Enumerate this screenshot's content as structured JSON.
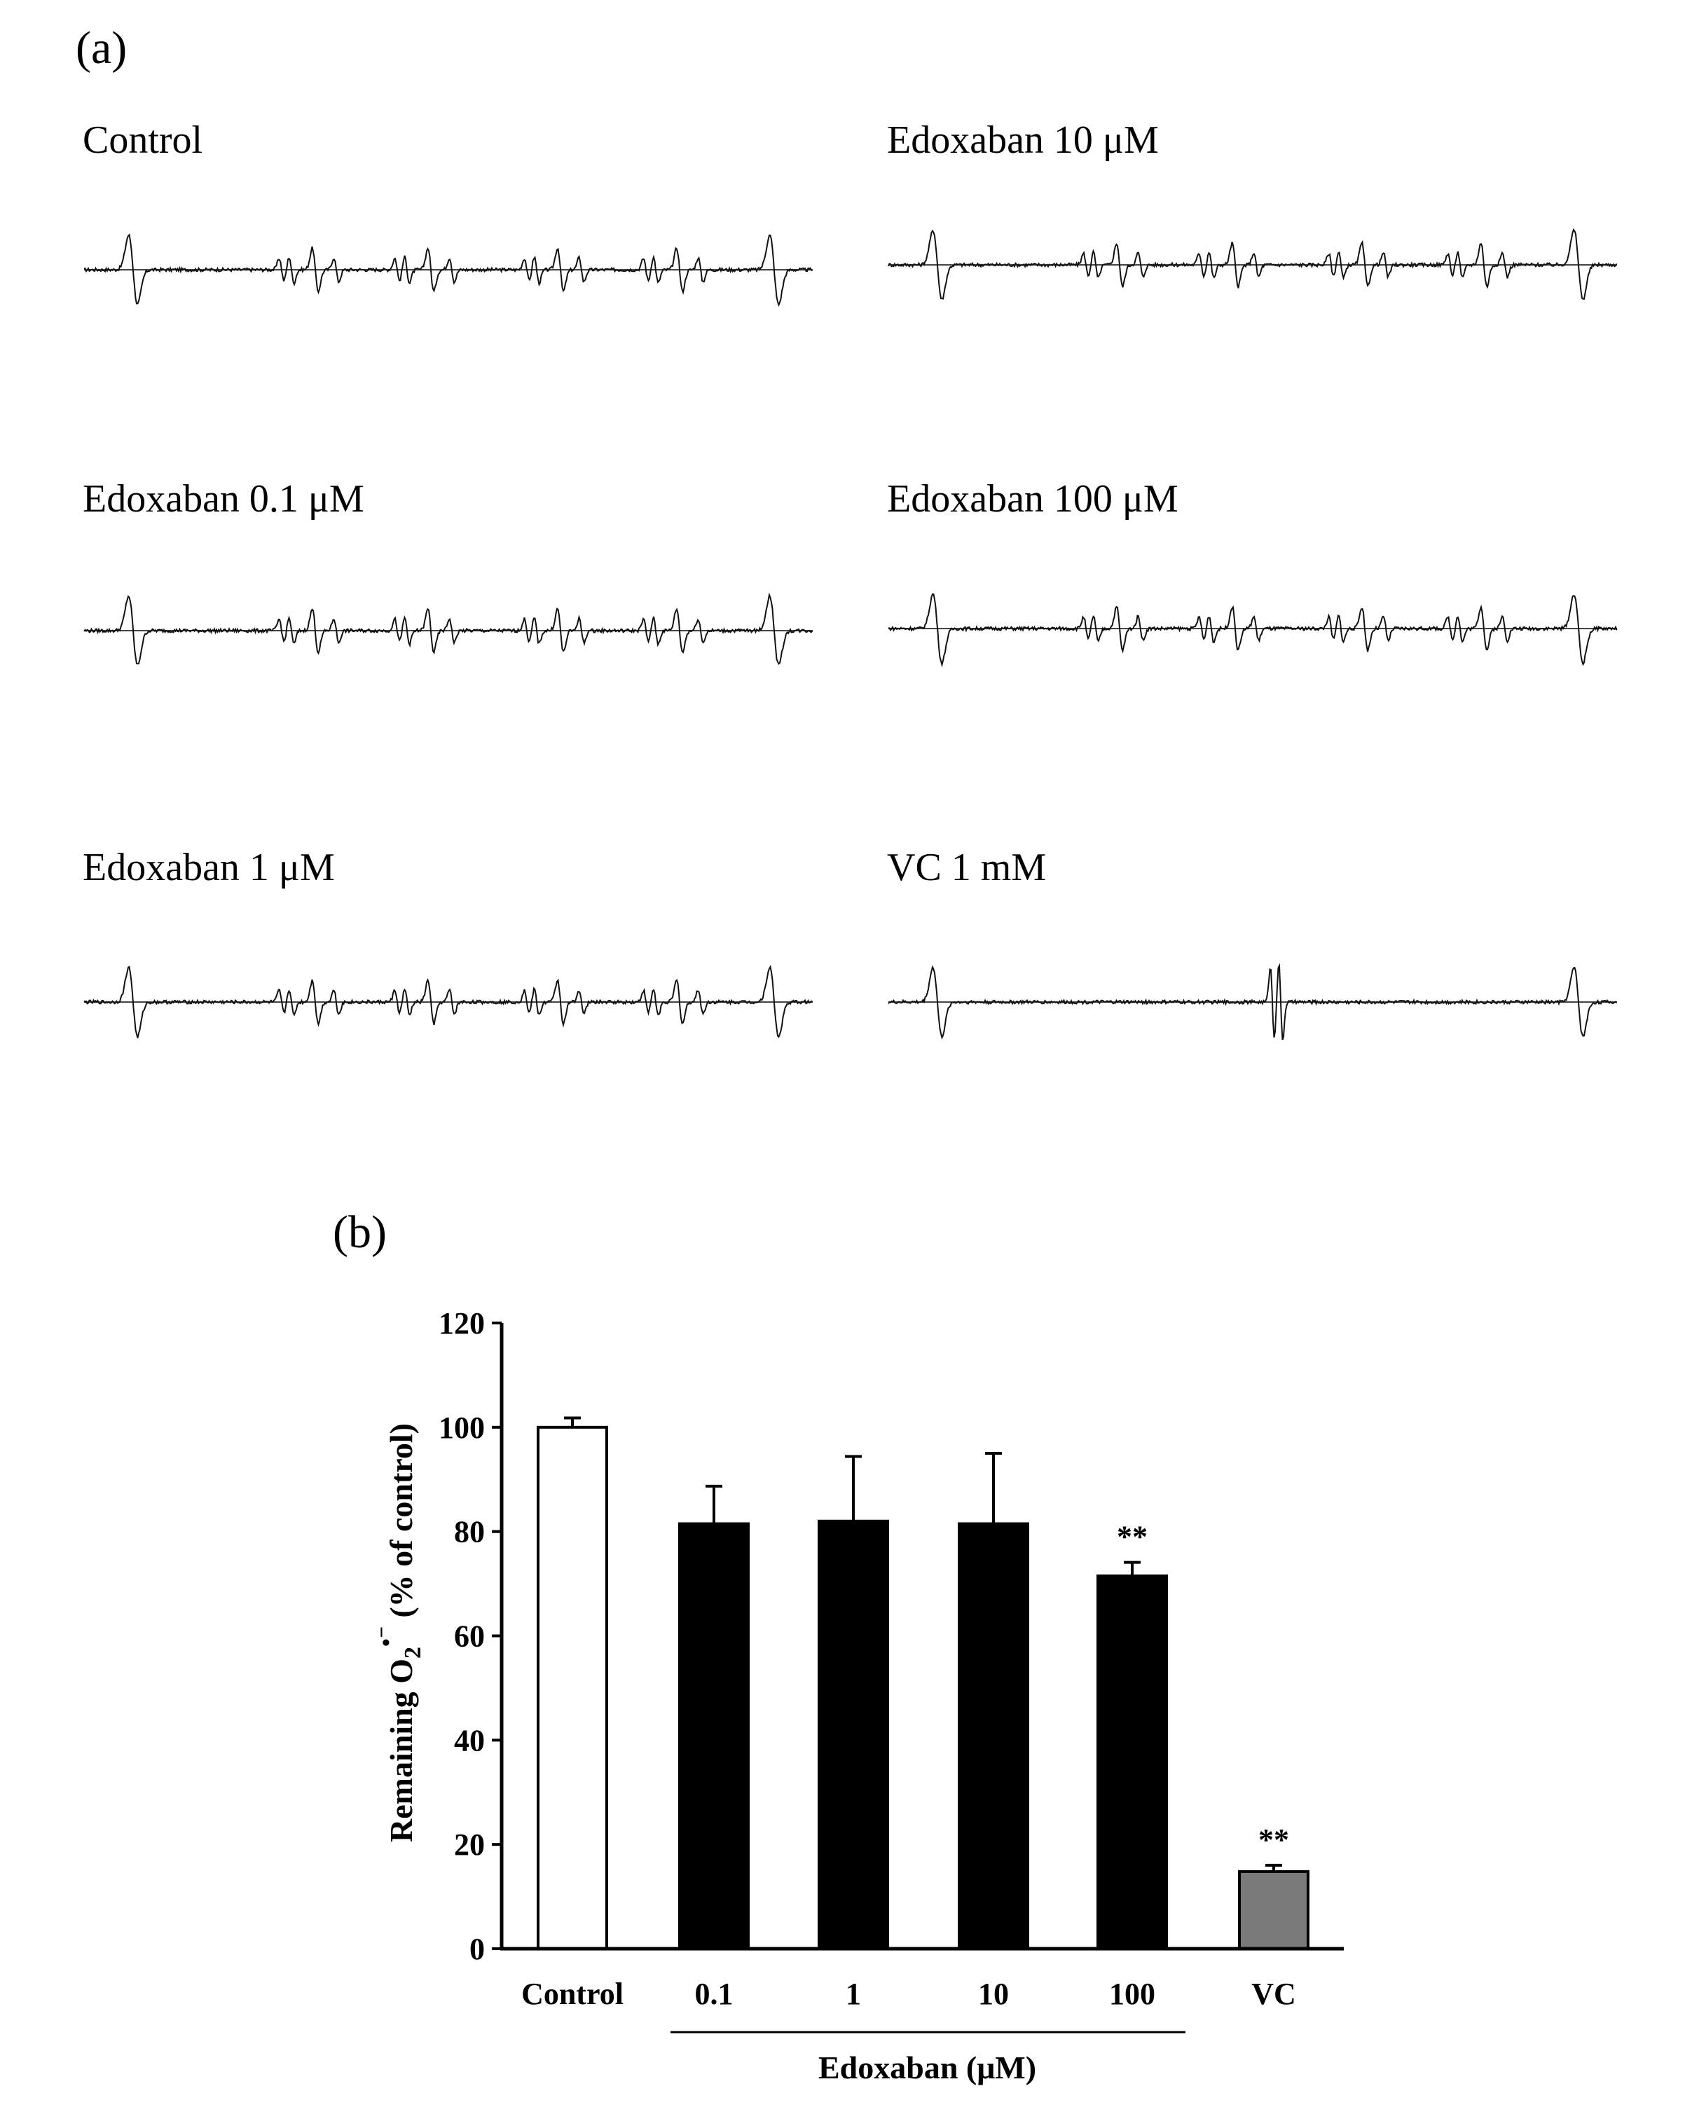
{
  "panel_a": {
    "label": "(a)",
    "spectra": [
      {
        "title": "Control",
        "variant": "control"
      },
      {
        "title": "Edoxaban  10 μM",
        "variant": "control"
      },
      {
        "title": "Edoxaban  0.1 μM",
        "variant": "control"
      },
      {
        "title": "Edoxaban  100 μM",
        "variant": "control"
      },
      {
        "title": "Edoxaban  1 μM",
        "variant": "control"
      },
      {
        "title": "VC  1 mM",
        "variant": "vc"
      }
    ]
  },
  "panel_b": {
    "label": "(b)"
  },
  "chart_data": {
    "type": "bar",
    "categories": [
      "Control",
      "0.1",
      "1",
      "10",
      "100",
      "VC"
    ],
    "values": [
      100,
      81.5,
      82,
      81.5,
      71.5,
      14.8
    ],
    "errors": [
      1.8,
      7.2,
      12.4,
      13.5,
      2.6,
      1.2
    ],
    "bar_colors": [
      "#ffffff",
      "#000000",
      "#000000",
      "#000000",
      "#000000",
      "#7a7a7a"
    ],
    "significance": [
      "",
      "",
      "",
      "",
      "**",
      "**"
    ],
    "ylabel": "Remaining O₂•⁻ (% of control)",
    "ylabel_parts": {
      "pre": "Remaining O",
      "sub": "2",
      "sup": "•⁻",
      "post": " (% of control)"
    },
    "ylim": [
      0,
      120
    ],
    "yticks": [
      0,
      20,
      40,
      60,
      80,
      100,
      120
    ],
    "group_label": "Edoxaban (μM)",
    "group_span": [
      "0.1",
      "100"
    ]
  }
}
